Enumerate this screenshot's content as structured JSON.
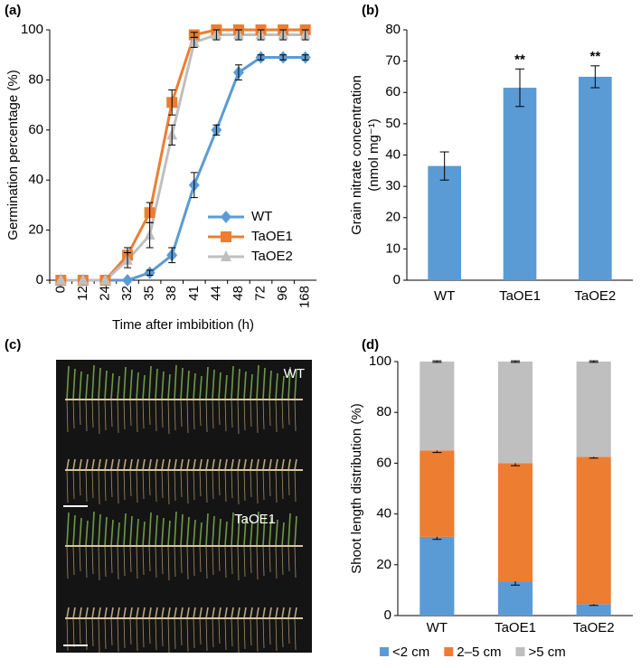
{
  "chart_data": [
    {
      "type": "line",
      "label": "(a)",
      "xlabel": "Time after imbibition (h)",
      "ylabel": "Germination percentage (%)",
      "categories": [
        "0",
        "12",
        "24",
        "32",
        "35",
        "38",
        "41",
        "44",
        "48",
        "72",
        "96",
        "168"
      ],
      "ylim": [
        0,
        100
      ],
      "yticks": [
        0,
        20,
        40,
        60,
        80,
        100
      ],
      "legend": "lower right",
      "series": [
        {
          "name": "WT",
          "color": "#5b9bd5",
          "marker": "diamond",
          "values": [
            0,
            0,
            0,
            0,
            3,
            10,
            38,
            60,
            83,
            89,
            89,
            89
          ],
          "errors": [
            0,
            0,
            0,
            0,
            1,
            3,
            5,
            2,
            3,
            1,
            1,
            1
          ]
        },
        {
          "name": "TaOE1",
          "color": "#ed7d31",
          "marker": "square",
          "values": [
            0,
            0,
            0,
            10,
            27,
            71,
            98,
            100,
            100,
            100,
            100,
            100
          ],
          "errors": [
            0,
            0,
            0,
            3,
            4,
            5,
            1,
            0,
            0,
            0,
            0,
            0
          ]
        },
        {
          "name": "TaOE2",
          "color": "#bfbfbf",
          "marker": "triangle",
          "values": [
            0,
            0,
            0,
            8,
            18,
            58,
            95,
            98,
            98,
            98,
            98,
            98
          ],
          "errors": [
            0,
            0,
            0,
            3,
            5,
            4,
            2,
            2,
            2,
            2,
            2,
            2
          ]
        }
      ]
    },
    {
      "type": "bar",
      "label": "(b)",
      "ylabel": "Grain nitrate concentration",
      "ylabel_unit": "(nmol mg⁻¹)",
      "categories": [
        "WT",
        "TaOE1",
        "TaOE2"
      ],
      "values": [
        36.5,
        61.5,
        65
      ],
      "errors": [
        4.5,
        6,
        3.5
      ],
      "significance": [
        null,
        "**",
        "**"
      ],
      "color": "#5b9bd5",
      "ylim": [
        0,
        80
      ],
      "yticks": [
        0,
        10,
        20,
        30,
        40,
        50,
        60,
        70,
        80
      ]
    },
    {
      "type": "image",
      "label": "(c)",
      "annotations": [
        "WT",
        "TaOE1"
      ]
    },
    {
      "type": "stacked-bar",
      "label": "(d)",
      "ylabel": "Shoot length distribution (%)",
      "categories": [
        "WT",
        "TaOE1",
        "TaOE2"
      ],
      "ylim": [
        0,
        100
      ],
      "yticks": [
        0,
        20,
        40,
        60,
        80,
        100
      ],
      "legend": "bottom",
      "series": [
        {
          "name": "<2 cm",
          "color": "#5b9bd5",
          "values": [
            31,
            13.5,
            4.5
          ],
          "errors": [
            1,
            1.5,
            0.5
          ]
        },
        {
          "name": "2–5 cm",
          "color": "#ed7d31",
          "values": [
            34,
            46.5,
            58
          ],
          "errors": [
            0.8,
            1,
            0.5
          ]
        },
        {
          "name": ">5 cm",
          "color": "#bfbfbf",
          "values": [
            35,
            40,
            37.5
          ],
          "errors": [
            0.3,
            0.3,
            0.3
          ]
        }
      ]
    }
  ]
}
